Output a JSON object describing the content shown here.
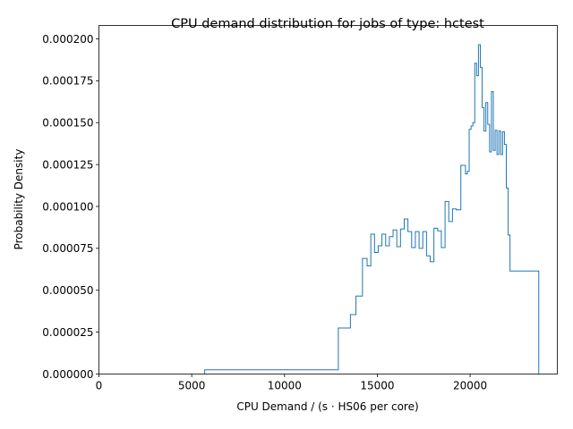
{
  "chart_data": {
    "type": "histogram-step",
    "title": "CPU demand distribution for jobs of type: hctest",
    "xlabel": "CPU Demand / (s · HS06 per core)",
    "ylabel": "Probability Density",
    "xlim": [
      0,
      24700
    ],
    "ylim": [
      0,
      0.000208
    ],
    "xticks": [
      0,
      5000,
      10000,
      15000,
      20000
    ],
    "xtick_labels": [
      "0",
      "5000",
      "10000",
      "15000",
      "20000"
    ],
    "yticks": [
      0,
      2.5e-05,
      5e-05,
      7.5e-05,
      0.0001,
      0.000125,
      0.00015,
      0.000175,
      0.0002
    ],
    "ytick_labels": [
      "0.000000",
      "0.000025",
      "0.000050",
      "0.000075",
      "0.000100",
      "0.000125",
      "0.000150",
      "0.000175",
      "0.000200"
    ],
    "grid": false,
    "legend": "none",
    "series_color": "#1f77b4",
    "bin_edges": [
      5700,
      12900,
      13550,
      13850,
      14200,
      14450,
      14650,
      14850,
      15050,
      15250,
      15450,
      15650,
      15850,
      16050,
      16250,
      16450,
      16650,
      16850,
      17050,
      17250,
      17450,
      17650,
      17850,
      18050,
      18250,
      18450,
      18650,
      18850,
      19050,
      19250,
      19500,
      19750,
      19850,
      19950,
      20050,
      20150,
      20250,
      20350,
      20450,
      20550,
      20650,
      20750,
      20850,
      20950,
      21050,
      21150,
      21250,
      21350,
      21450,
      21550,
      21650,
      21750,
      21850,
      21950,
      22050,
      22150,
      22250,
      22350,
      22450,
      22550,
      22650,
      22750,
      23700
    ],
    "densities": [
      2.5e-06,
      2.75e-05,
      3.55e-05,
      4.65e-05,
      6.9e-05,
      6.45e-05,
      8.35e-05,
      7.25e-05,
      7.65e-05,
      8.35e-05,
      7.65e-05,
      8.2e-05,
      8.6e-05,
      7.6e-05,
      8.65e-05,
      9.25e-05,
      8.5e-05,
      7.55e-05,
      8.5e-05,
      7.5e-05,
      8.5e-05,
      7.05e-05,
      6.7e-05,
      8.7e-05,
      8.55e-05,
      7.55e-05,
      0.000103,
      9.1e-05,
      9.85e-05,
      9.8e-05,
      0.0001245,
      0.0001195,
      0.000121,
      0.000146,
      0.000148,
      0.00015,
      0.0001855,
      0.000178,
      0.0001965,
      0.000183,
      0.000159,
      0.000145,
      0.000162,
      0.000149,
      0.0001325,
      0.0001685,
      0.0001335,
      0.0001455,
      0.000131,
      0.000145,
      0.000131,
      0.0001445,
      0.000137,
      0.000111,
      8.3e-05,
      6.15e-05,
      6.15e-05,
      6.15e-05,
      6.15e-05,
      6.15e-05,
      6.15e-05,
      6.15e-05
    ]
  }
}
